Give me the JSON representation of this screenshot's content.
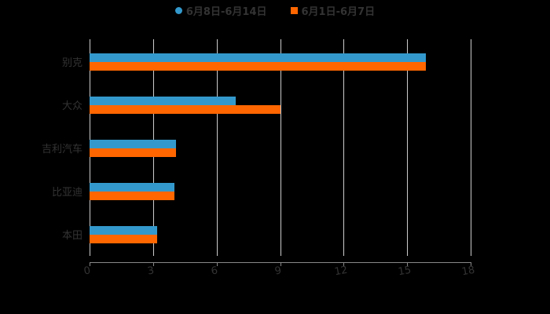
{
  "chart_data": {
    "type": "bar",
    "orientation": "horizontal",
    "title": "",
    "categories": [
      "别克",
      "大众",
      "吉利汽车",
      "比亚迪",
      "本田"
    ],
    "series": [
      {
        "name": "6月8日-6月14日",
        "color": "#3399cc",
        "values": [
          15.9,
          6.9,
          4.1,
          4.0,
          3.2
        ]
      },
      {
        "name": "6月1日-6月7日",
        "color": "#ff6600",
        "values": [
          15.9,
          9.0,
          4.1,
          4.0,
          3.2
        ]
      }
    ],
    "xlabel": "",
    "ylabel": "",
    "xlim": [
      0,
      18
    ],
    "xticks": [
      "0",
      "3",
      "6",
      "9",
      "12",
      "15",
      "18"
    ],
    "grid": true,
    "legend_position": "top"
  },
  "legend": {
    "items": [
      {
        "label": "6月8日-6月14日",
        "color": "#3399cc",
        "shape": "circle"
      },
      {
        "label": "6月1日-6月7日",
        "color": "#ff6600",
        "shape": "square"
      }
    ]
  },
  "axis": {
    "x_ticks": [
      "0",
      "3",
      "6",
      "9",
      "12",
      "15",
      "18"
    ]
  },
  "categories": [
    "别克",
    "大众",
    "吉利汽车",
    "比亚迪",
    "本田"
  ]
}
